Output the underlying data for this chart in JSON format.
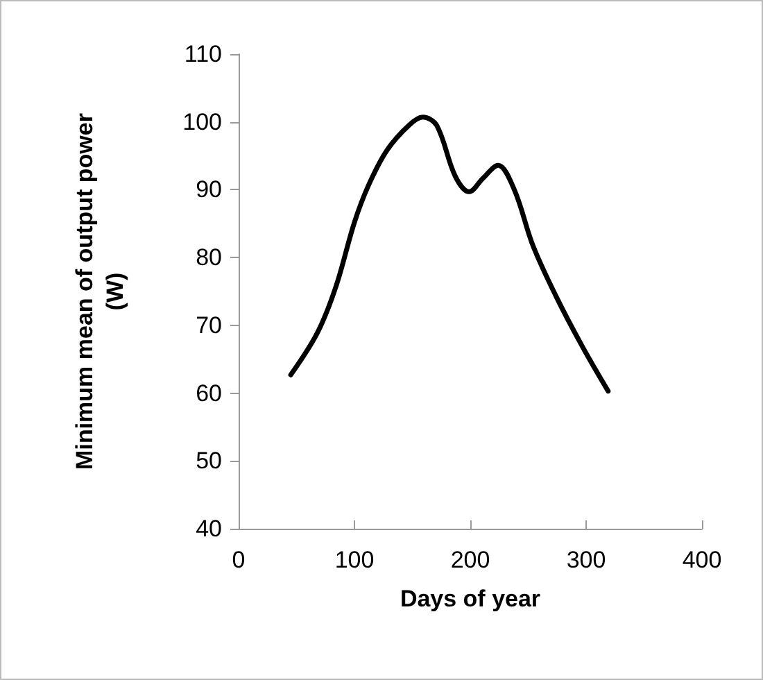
{
  "chart_data": {
    "type": "line",
    "xlabel": "Days of year",
    "ylabel": "Minimum mean of output power\n(W)",
    "x": [
      45,
      68,
      84,
      100,
      112,
      128,
      147,
      159,
      171,
      187,
      199,
      211,
      224,
      238,
      254,
      274,
      297,
      319
    ],
    "series": [
      {
        "color": "#000000",
        "values": [
          62.7,
          68.9,
          75.7,
          85.2,
          90.6,
          95.8,
          99.5,
          100.7,
          99.5,
          92.0,
          89.7,
          91.7,
          93.6,
          90.0,
          81.8,
          74.3,
          66.8,
          60.3
        ]
      }
    ],
    "xlim": [
      0,
      400
    ],
    "xticks": [
      0,
      100,
      200,
      300,
      400
    ],
    "ylim": [
      40,
      110
    ],
    "yticks": [
      40,
      50,
      60,
      70,
      80,
      90,
      100,
      110
    ],
    "marker": "none",
    "line_style": "solid"
  }
}
